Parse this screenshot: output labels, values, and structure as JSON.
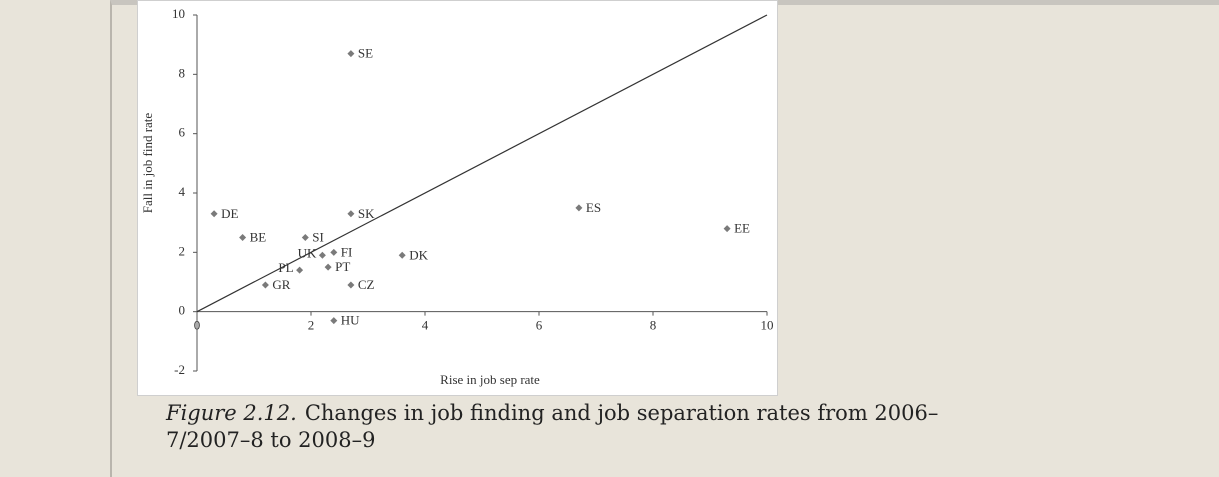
{
  "chart_data": {
    "type": "scatter",
    "xlabel": "Rise in job sep rate",
    "ylabel": "Fall in job find rate",
    "labels": [
      "SE",
      "DE",
      "BE",
      "SI",
      "SK",
      "ES",
      "EE",
      "UK",
      "FI",
      "DK",
      "PL",
      "PT",
      "GR",
      "CZ",
      "HU"
    ],
    "x": [
      2.7,
      0.3,
      0.8,
      1.9,
      2.7,
      6.7,
      9.3,
      2.2,
      2.4,
      3.6,
      1.8,
      2.3,
      1.2,
      2.7,
      2.4
    ],
    "values": [
      8.7,
      3.3,
      2.5,
      2.5,
      3.3,
      3.5,
      2.8,
      1.9,
      2.0,
      1.9,
      1.4,
      1.5,
      0.9,
      0.9,
      -0.3
    ],
    "color": "#7a7a7a",
    "reference_line": {
      "x": [
        0,
        10
      ],
      "values": [
        0,
        10
      ],
      "color": "#333333"
    },
    "xlim": [
      0,
      10
    ],
    "xticks": [
      0,
      2,
      4,
      6,
      8,
      10
    ],
    "ylim": [
      -2,
      10
    ],
    "yticks": [
      -2,
      0,
      2,
      4,
      6,
      8,
      10
    ],
    "grid": false
  },
  "caption": {
    "label": "Figure 2.12.",
    "text": "Changes in job finding and job separation rates from 2006–7/2007–8 to 2008–9"
  }
}
